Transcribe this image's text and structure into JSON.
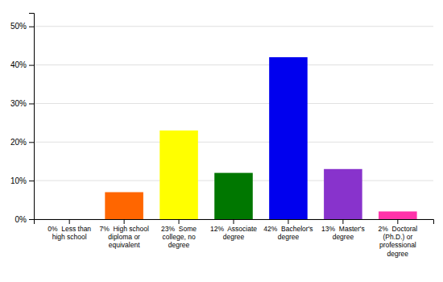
{
  "chart_data": {
    "type": "bar",
    "categories": [
      "0%  Less than\nhigh school",
      "7%  High school\ndiploma or\nequivalent",
      "23%  Some\ncollege, no\ndegree",
      "12%  Associate\ndegree",
      "42%  Bachelor's\ndegree",
      "13%  Master's\ndegree",
      "2%  Doctoral\n(Ph.D.) or\nprofessional\ndegree"
    ],
    "values": [
      0,
      7,
      23,
      12,
      42,
      13,
      2
    ],
    "colors": [
      "#dd0000",
      "#ff6600",
      "#ffff00",
      "#007700",
      "#0000ee",
      "#8833cc",
      "#ff33aa"
    ],
    "ylim": [
      0,
      53.5
    ],
    "yticks": [
      {
        "value": 0,
        "label": "0%"
      },
      {
        "value": 10,
        "label": "10%"
      },
      {
        "value": 20,
        "label": "20%"
      },
      {
        "value": 30,
        "label": "30%"
      },
      {
        "value": 40,
        "label": "40%"
      },
      {
        "value": 50,
        "label": "50%"
      }
    ],
    "grid": true
  }
}
